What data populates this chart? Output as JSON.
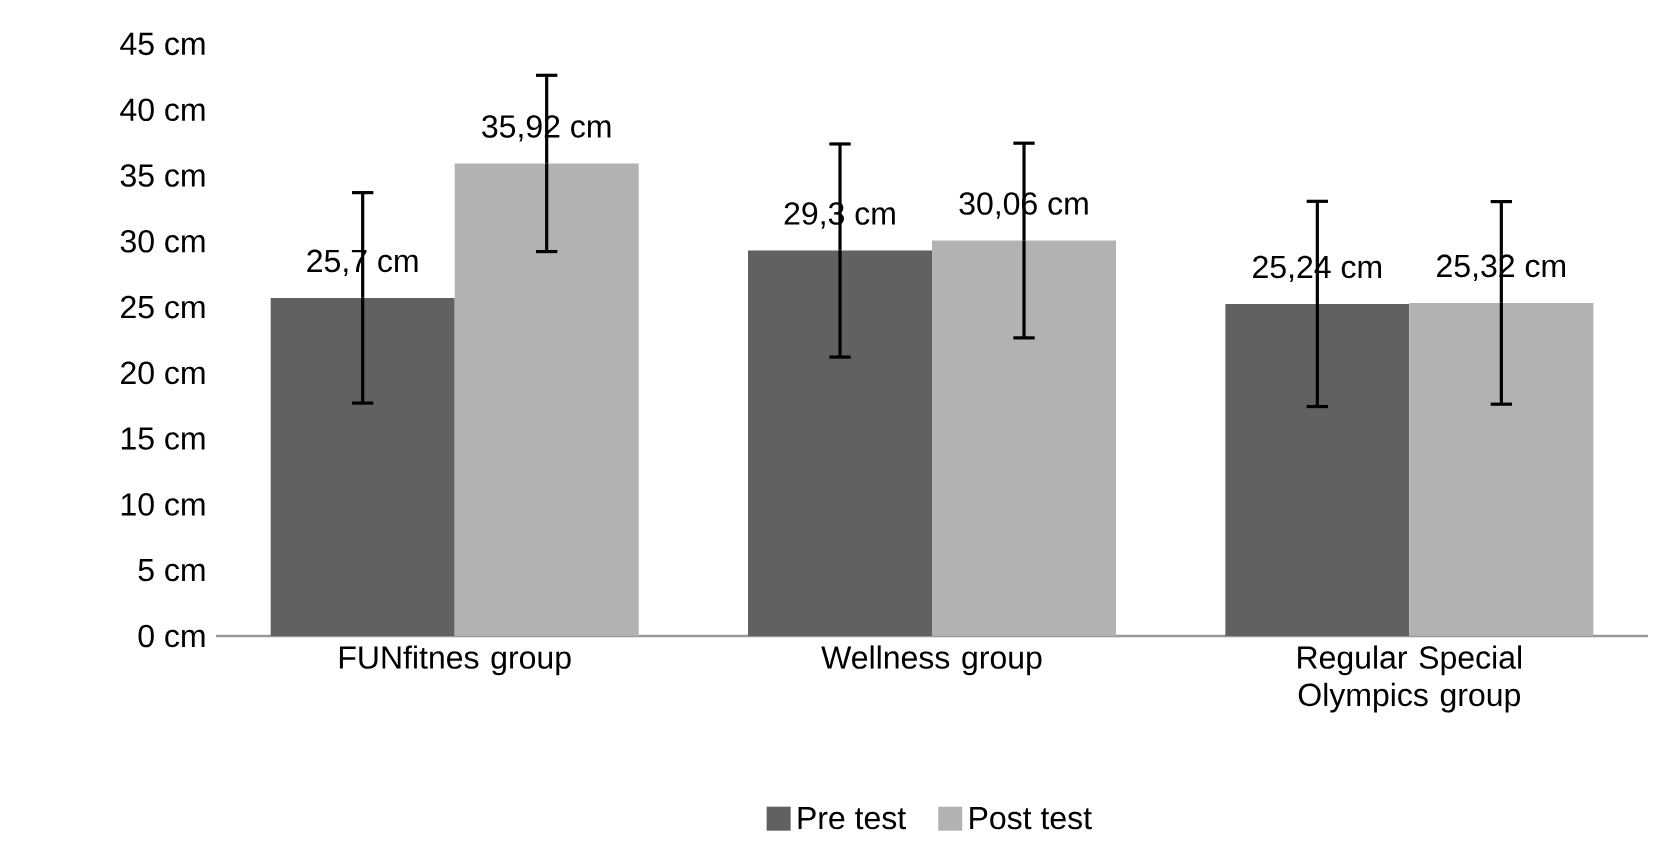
{
  "chart_data": {
    "type": "bar",
    "categories": [
      "FUNfitnes  group",
      "Wellness group",
      "Regular Special Olympics group"
    ],
    "series": [
      {
        "name": "Pre test",
        "color": "#616161",
        "values": [
          25.7,
          29.3,
          25.24
        ],
        "errors": [
          8.0,
          8.1,
          7.8
        ],
        "value_labels": [
          "25,7 cm",
          "29,3 cm",
          "25,24 cm"
        ]
      },
      {
        "name": "Post test",
        "color": "#b2b2b2",
        "values": [
          35.92,
          30.06,
          25.32
        ],
        "errors": [
          6.7,
          7.4,
          7.7
        ],
        "value_labels": [
          "35,92 cm",
          "30,06 cm",
          "25,32 cm"
        ]
      }
    ],
    "ylim": [
      0,
      45
    ],
    "yticks": [
      {
        "value": 0,
        "label": "0 cm"
      },
      {
        "value": 5,
        "label": "5 cm"
      },
      {
        "value": 10,
        "label": "10 cm"
      },
      {
        "value": 15,
        "label": "15 cm"
      },
      {
        "value": 20,
        "label": "20 cm"
      },
      {
        "value": 25,
        "label": "25 cm"
      },
      {
        "value": 30,
        "label": "30 cm"
      },
      {
        "value": 35,
        "label": "35 cm"
      },
      {
        "value": 40,
        "label": "40 cm"
      },
      {
        "value": 45,
        "label": "45 cm"
      }
    ],
    "grid": false,
    "legend": "bottom"
  }
}
